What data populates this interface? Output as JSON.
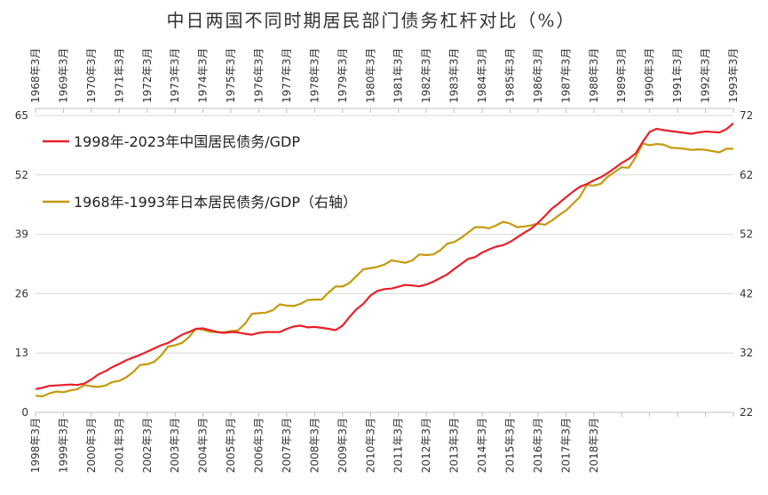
{
  "chart_data": {
    "type": "line",
    "title": "中日两国不同时期居民部门债务杠杆对比（%）",
    "colors": {
      "china": "#e8202a",
      "japan": "#c49a0c"
    },
    "y_left": {
      "ylim": [
        0,
        65
      ],
      "ticks": [
        "0",
        "13",
        "26",
        "39",
        "52",
        "65"
      ]
    },
    "y_right": {
      "ylim": [
        22,
        72
      ],
      "ticks": [
        "22",
        "32",
        "42",
        "52",
        "62",
        "72"
      ]
    },
    "x_bottom_labels": [
      "1998年3月",
      "1999年3月",
      "2000年3月",
      "2001年3月",
      "2002年3月",
      "2003年3月",
      "2004年3月",
      "2005年3月",
      "2006年3月",
      "2007年3月",
      "2008年3月",
      "2009年3月",
      "2010年3月",
      "2011年3月",
      "2012年3月",
      "2013年3月",
      "2014年3月",
      "2015年3月",
      "2016年3月",
      "2017年3月",
      "2018年3月",
      "",
      "",
      "",
      "",
      ""
    ],
    "x_top_labels": [
      "1968年3月",
      "1969年3月",
      "1970年3月",
      "1971年3月",
      "1972年3月",
      "1973年3月",
      "1974年3月",
      "1975年3月",
      "1976年3月",
      "1977年3月",
      "1978年3月",
      "1979年3月",
      "1980年3月",
      "1981年3月",
      "1982年3月",
      "1983年3月",
      "1984年3月",
      "1985年3月",
      "1986年3月",
      "1987年3月",
      "1988年3月",
      "1989年3月",
      "1990年3月",
      "1991年3月",
      "1992年3月",
      "1993年3月"
    ],
    "legend": [
      {
        "name": "1998年-2023年中国居民债务/GDP",
        "color": "#e8202a"
      },
      {
        "name": "1968年-1993年日本居民债务/GDP（右轴）",
        "color": "#c49a0c"
      }
    ],
    "series": [
      {
        "name": "1998年-2023年中国居民债务/GDP",
        "axis": "left",
        "x": [
          1998.25,
          1998.5,
          1998.75,
          1999.0,
          1999.25,
          1999.5,
          1999.75,
          2000.0,
          2000.25,
          2000.5,
          2000.75,
          2001.0,
          2001.25,
          2001.5,
          2001.75,
          2002.0,
          2002.25,
          2002.5,
          2002.75,
          2003.0,
          2003.25,
          2003.5,
          2003.75,
          2004.0,
          2004.25,
          2004.5,
          2004.75,
          2005.0,
          2005.25,
          2005.5,
          2005.75,
          2006.0,
          2006.25,
          2006.5,
          2006.75,
          2007.0,
          2007.25,
          2007.5,
          2007.75,
          2008.0,
          2008.25,
          2008.5,
          2008.75,
          2009.0,
          2009.25,
          2009.5,
          2009.75,
          2010.0,
          2010.25,
          2010.5,
          2010.75,
          2011.0,
          2011.25,
          2011.5,
          2011.75,
          2012.0,
          2012.25,
          2012.5,
          2012.75,
          2013.0,
          2013.25,
          2013.5,
          2013.75,
          2014.0,
          2014.25,
          2014.5,
          2014.75,
          2015.0,
          2015.25,
          2015.5,
          2015.75,
          2016.0,
          2016.25,
          2016.5,
          2016.75,
          2017.0,
          2017.25,
          2017.5,
          2017.75,
          2018.0,
          2018.25,
          2018.5,
          2018.75,
          2019.0,
          2019.25,
          2019.5,
          2019.75,
          2020.0,
          2020.25,
          2020.5,
          2020.75,
          2021.0,
          2021.25,
          2021.5,
          2021.75,
          2022.0,
          2022.25,
          2022.5,
          2022.75,
          2023.0,
          2023.25
        ],
        "values": [
          5.1,
          5.4,
          5.8,
          5.9,
          6.0,
          6.1,
          6.0,
          6.3,
          7.2,
          8.3,
          9.0,
          9.9,
          10.6,
          11.4,
          12.0,
          12.6,
          13.3,
          14.0,
          14.7,
          15.2,
          16.1,
          17.0,
          17.6,
          18.3,
          18.4,
          18.0,
          17.6,
          17.4,
          17.6,
          17.5,
          17.2,
          17.0,
          17.4,
          17.6,
          17.6,
          17.6,
          18.3,
          18.8,
          19.0,
          18.6,
          18.7,
          18.5,
          18.3,
          18.0,
          19.0,
          20.9,
          22.6,
          23.8,
          25.6,
          26.6,
          27.0,
          27.1,
          27.5,
          27.9,
          27.8,
          27.6,
          28.0,
          28.6,
          29.4,
          30.2,
          31.4,
          32.5,
          33.6,
          34.0,
          35.0,
          35.7,
          36.3,
          36.6,
          37.3,
          38.3,
          39.3,
          40.2,
          41.5,
          43.0,
          44.6,
          45.8,
          47.1,
          48.3,
          49.4,
          50.0,
          50.8,
          51.5,
          52.4,
          53.5,
          54.6,
          55.5,
          56.7,
          59.2,
          61.4,
          62.1,
          61.8,
          61.6,
          61.4,
          61.2,
          61.0,
          61.3,
          61.5,
          61.4,
          61.3,
          62.0,
          63.3
        ]
      },
      {
        "name": "1968年-1993年日本居民债务/GDP（右轴）",
        "axis": "right",
        "x": [
          1968.25,
          1968.5,
          1968.75,
          1969.0,
          1969.25,
          1969.5,
          1969.75,
          1970.0,
          1970.25,
          1970.5,
          1970.75,
          1971.0,
          1971.25,
          1971.5,
          1971.75,
          1972.0,
          1972.25,
          1972.5,
          1972.75,
          1973.0,
          1973.25,
          1973.5,
          1973.75,
          1974.0,
          1974.25,
          1974.5,
          1974.75,
          1975.0,
          1975.25,
          1975.5,
          1975.75,
          1976.0,
          1976.25,
          1976.5,
          1976.75,
          1977.0,
          1977.25,
          1977.5,
          1977.75,
          1978.0,
          1978.25,
          1978.5,
          1978.75,
          1979.0,
          1979.25,
          1979.5,
          1979.75,
          1980.0,
          1980.25,
          1980.5,
          1980.75,
          1981.0,
          1981.25,
          1981.5,
          1981.75,
          1982.0,
          1982.25,
          1982.5,
          1982.75,
          1983.0,
          1983.25,
          1983.5,
          1983.75,
          1984.0,
          1984.25,
          1984.5,
          1984.75,
          1985.0,
          1985.25,
          1985.5,
          1985.75,
          1986.0,
          1986.25,
          1986.5,
          1986.75,
          1987.0,
          1987.25,
          1987.5,
          1987.75,
          1988.0,
          1988.25,
          1988.5,
          1988.75,
          1989.0,
          1989.25,
          1989.5,
          1989.75,
          1990.0,
          1990.25,
          1990.5,
          1990.75,
          1991.0,
          1991.25,
          1991.5,
          1991.75,
          1992.0,
          1992.25,
          1992.5,
          1992.75,
          1993.0,
          1993.25
        ],
        "values": [
          24.8,
          24.7,
          25.2,
          25.5,
          25.4,
          25.7,
          25.9,
          26.6,
          26.4,
          26.3,
          26.5,
          27.1,
          27.3,
          27.9,
          28.8,
          30.0,
          30.1,
          30.5,
          31.6,
          33.1,
          33.3,
          33.7,
          34.7,
          36.1,
          35.9,
          35.6,
          35.5,
          35.5,
          35.7,
          35.8,
          36.9,
          38.6,
          38.7,
          38.8,
          39.2,
          40.2,
          40.0,
          39.9,
          40.3,
          40.9,
          41.0,
          41.0,
          42.2,
          43.2,
          43.2,
          43.8,
          45.0,
          46.1,
          46.3,
          46.5,
          46.9,
          47.6,
          47.4,
          47.2,
          47.6,
          48.6,
          48.5,
          48.6,
          49.3,
          50.4,
          50.7,
          51.4,
          52.3,
          53.2,
          53.2,
          53.0,
          53.5,
          54.1,
          53.8,
          53.2,
          53.3,
          53.5,
          53.8,
          53.6,
          54.3,
          55.2,
          56.0,
          57.1,
          58.3,
          60.3,
          60.2,
          60.5,
          61.7,
          62.5,
          63.3,
          63.2,
          65.0,
          67.3,
          67.0,
          67.2,
          67.1,
          66.6,
          66.5,
          66.4,
          66.2,
          66.3,
          66.2,
          66.0,
          65.8,
          66.4,
          66.4
        ]
      }
    ]
  }
}
